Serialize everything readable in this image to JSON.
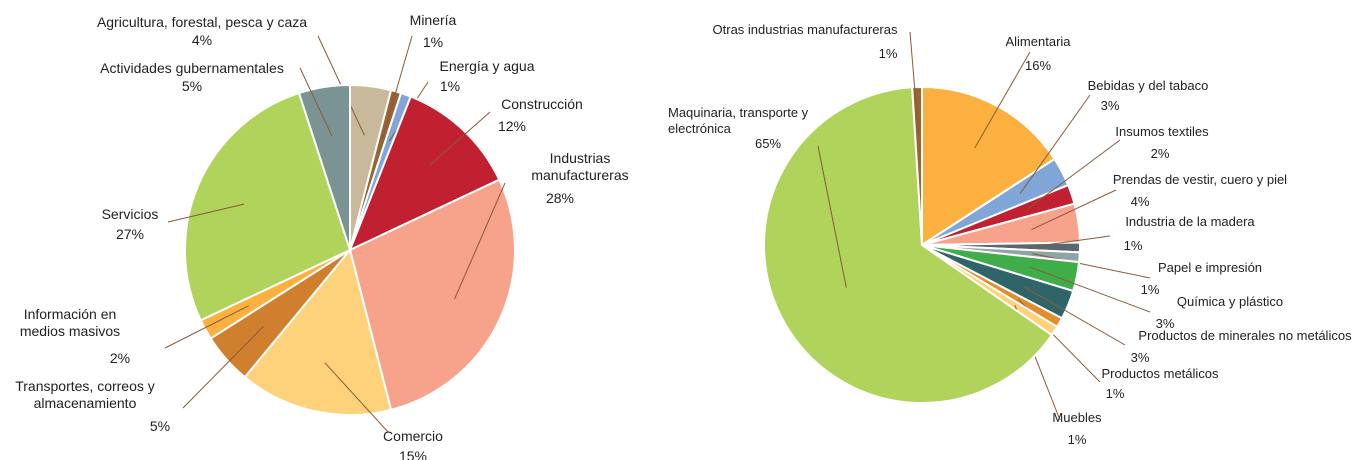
{
  "chart_data": [
    {
      "type": "pie",
      "categories": [
        "Agricultura, forestal, pesca y caza",
        "Minería",
        "Energía y agua",
        "Construcción",
        "Industrias manufactureras",
        "Comercio",
        "Transportes, correos y almacenamiento",
        "Información en medios masivos",
        "Servicios",
        "Actividades gubernamentales"
      ],
      "values": [
        4,
        1,
        1,
        12,
        28,
        15,
        5,
        2,
        27,
        5
      ],
      "value_labels": [
        "4%",
        "1%",
        "1%",
        "12%",
        "28%",
        "15%",
        "5%",
        "2%",
        "27%",
        "5%"
      ],
      "colors": [
        "#c8b99a",
        "#9a6332",
        "#7fa6d6",
        "#c0202f",
        "#f7a28a",
        "#fdd27a",
        "#d07f2e",
        "#fbb040",
        "#b0d35b",
        "#7a9494"
      ]
    },
    {
      "type": "pie",
      "categories": [
        "Alimentaria",
        "Bebidas y del tabaco",
        "Insumos textiles",
        "Prendas de vestir, cuero y piel",
        "Industria de la madera",
        "Papel e impresión",
        "Química y plástico",
        "Productos de minerales no metálicos",
        "Productos metálicos",
        "Muebles",
        "Maquinaria, transporte y electrónica",
        "Otras industrias manufactureras"
      ],
      "values": [
        16,
        3,
        2,
        4,
        1,
        1,
        3,
        3,
        1,
        1,
        65,
        1
      ],
      "value_labels": [
        "16%",
        "3%",
        "2%",
        "4%",
        "1%",
        "1%",
        "3%",
        "3%",
        "1%",
        "1%",
        "65%",
        "1%"
      ],
      "colors": [
        "#fbb040",
        "#7fa6d6",
        "#c0202f",
        "#f7a28a",
        "#5b6770",
        "#8fa5a5",
        "#3fae49",
        "#2f6468",
        "#e28e2e",
        "#fdd27a",
        "#b0d35b",
        "#9a6332"
      ]
    }
  ]
}
